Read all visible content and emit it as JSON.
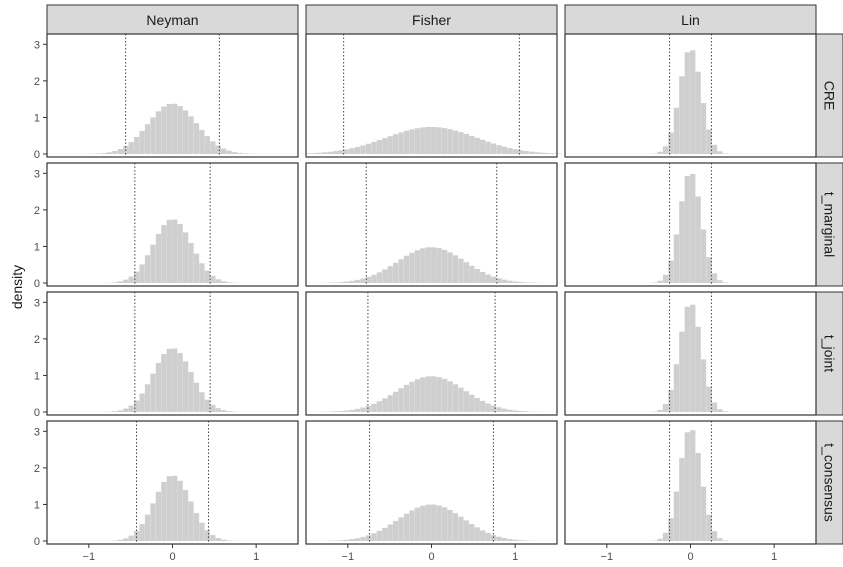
{
  "chart_data": {
    "type": "histogram",
    "ylabel": "density",
    "xlabel": "",
    "xlim": [
      -1.5,
      1.5
    ],
    "ylim": [
      0,
      3.2
    ],
    "x_ticks": [
      -1,
      0,
      1
    ],
    "y_ticks": [
      0,
      1,
      2,
      3
    ],
    "grid": false,
    "bin_width": 0.065,
    "bar_color": "#cfcfcf",
    "columns": [
      "Neyman",
      "Fisher",
      "Lin"
    ],
    "rows": [
      "CRE",
      "t_marginal",
      "t_joint",
      "t_consensus"
    ],
    "panels": [
      {
        "row": "CRE",
        "column": "Neyman",
        "peak_density": 1.38,
        "sd": 0.29,
        "quantile_lines": [
          -0.56,
          0.56
        ]
      },
      {
        "row": "CRE",
        "column": "Fisher",
        "peak_density": 0.74,
        "sd": 0.54,
        "quantile_lines": [
          -1.05,
          1.05
        ]
      },
      {
        "row": "CRE",
        "column": "Lin",
        "peak_density": 2.9,
        "sd": 0.13,
        "quantile_lines": [
          -0.25,
          0.25
        ]
      },
      {
        "row": "t_marginal",
        "column": "Neyman",
        "peak_density": 1.75,
        "sd": 0.23,
        "quantile_lines": [
          -0.45,
          0.45
        ]
      },
      {
        "row": "t_marginal",
        "column": "Fisher",
        "peak_density": 0.98,
        "sd": 0.4,
        "quantile_lines": [
          -0.78,
          0.78
        ]
      },
      {
        "row": "t_marginal",
        "column": "Lin",
        "peak_density": 3.05,
        "sd": 0.13,
        "quantile_lines": [
          -0.25,
          0.25
        ]
      },
      {
        "row": "t_joint",
        "column": "Neyman",
        "peak_density": 1.75,
        "sd": 0.23,
        "quantile_lines": [
          -0.45,
          0.45
        ]
      },
      {
        "row": "t_joint",
        "column": "Fisher",
        "peak_density": 0.98,
        "sd": 0.4,
        "quantile_lines": [
          -0.76,
          0.76
        ]
      },
      {
        "row": "t_joint",
        "column": "Lin",
        "peak_density": 3.0,
        "sd": 0.13,
        "quantile_lines": [
          -0.25,
          0.25
        ]
      },
      {
        "row": "t_consensus",
        "column": "Neyman",
        "peak_density": 1.8,
        "sd": 0.22,
        "quantile_lines": [
          -0.43,
          0.43
        ]
      },
      {
        "row": "t_consensus",
        "column": "Fisher",
        "peak_density": 1.0,
        "sd": 0.39,
        "quantile_lines": [
          -0.74,
          0.74
        ]
      },
      {
        "row": "t_consensus",
        "column": "Lin",
        "peak_density": 3.1,
        "sd": 0.13,
        "quantile_lines": [
          -0.25,
          0.25
        ]
      }
    ]
  }
}
